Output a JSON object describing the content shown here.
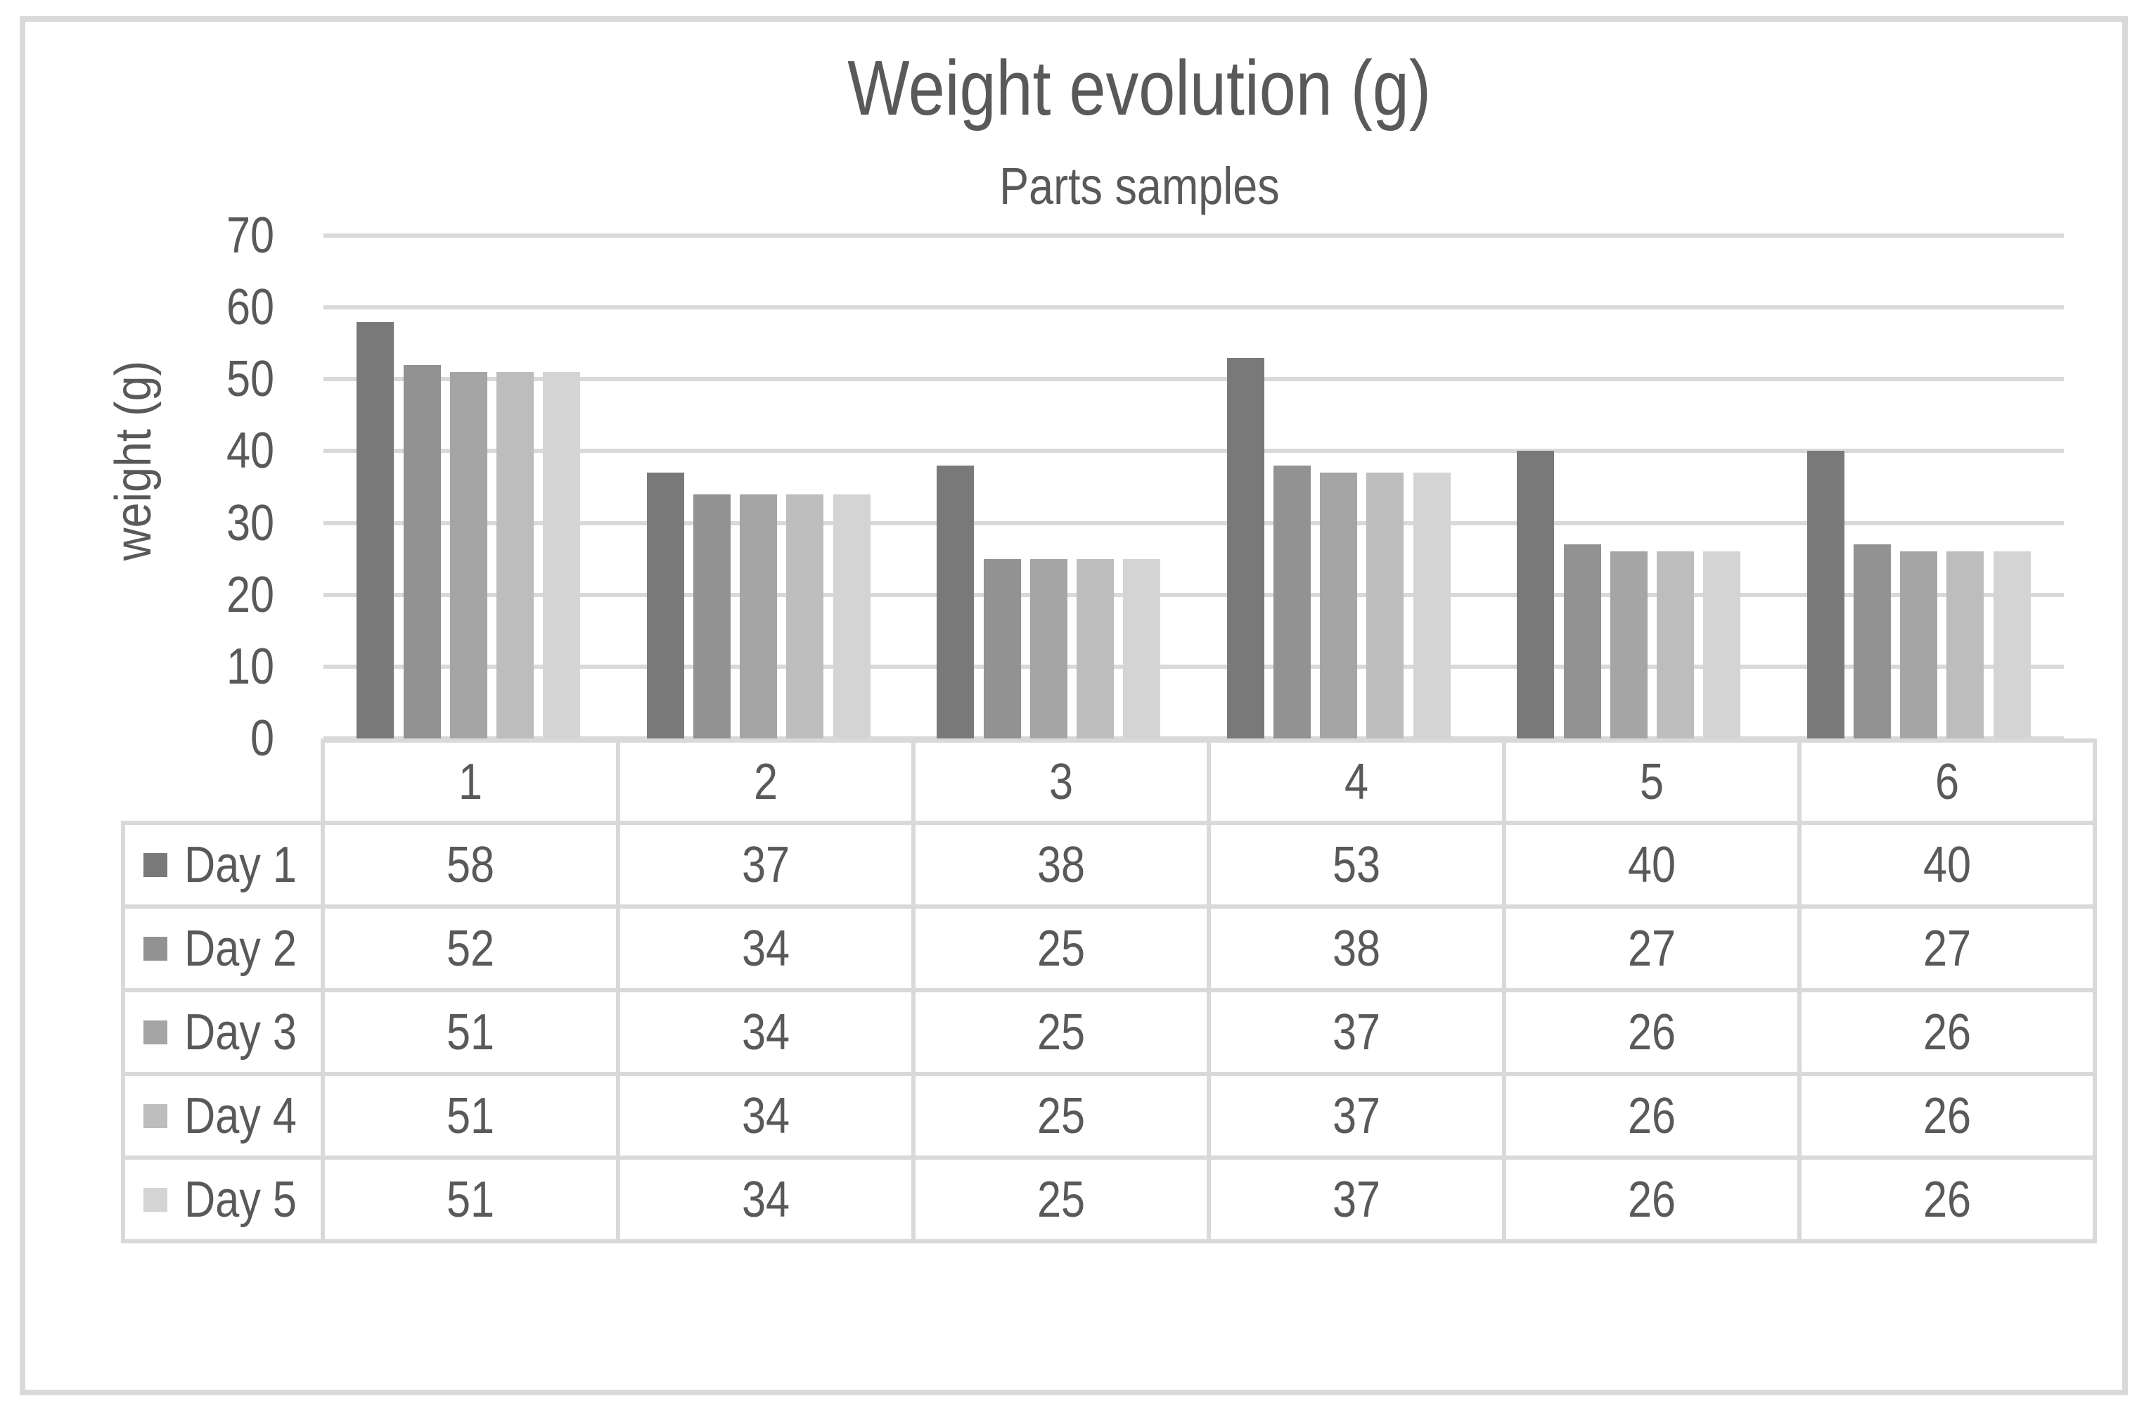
{
  "chart_data": {
    "type": "bar",
    "title": "Weight evolution (g)",
    "subtitle": "Parts samples",
    "ylabel": "weight (g)",
    "xlabel": "",
    "categories": [
      "1",
      "2",
      "3",
      "4",
      "5",
      "6"
    ],
    "series": [
      {
        "name": "Day 1",
        "color": "#797979",
        "values": [
          58,
          37,
          38,
          53,
          40,
          40
        ]
      },
      {
        "name": "Day 2",
        "color": "#929292",
        "values": [
          52,
          34,
          25,
          38,
          27,
          27
        ]
      },
      {
        "name": "Day 3",
        "color": "#a5a5a5",
        "values": [
          51,
          34,
          25,
          37,
          26,
          26
        ]
      },
      {
        "name": "Day 4",
        "color": "#bdbdbd",
        "values": [
          51,
          34,
          25,
          37,
          26,
          26
        ]
      },
      {
        "name": "Day 5",
        "color": "#d4d4d4",
        "values": [
          51,
          34,
          25,
          37,
          26,
          26
        ]
      }
    ],
    "ylim": [
      0,
      70
    ],
    "yticks": [
      0,
      10,
      20,
      30,
      40,
      50,
      60,
      70
    ],
    "grid": true,
    "legend_position": "data-table-left",
    "data_table_shown": true,
    "colors": {
      "text": "#595959",
      "gridline": "#d9d9d9",
      "table_border": "#d9d9d9",
      "frame_border": "#d9d9d9",
      "background": "#ffffff"
    }
  }
}
